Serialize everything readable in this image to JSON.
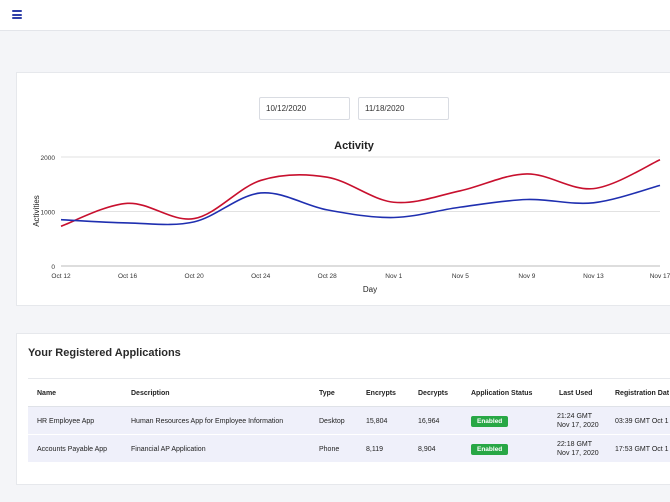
{
  "topbar": {
    "menu_icon": "hamburger-menu-icon"
  },
  "filters": {
    "start_date": "10/12/2020",
    "end_date": "11/18/2020"
  },
  "chart_data": {
    "type": "line",
    "title": "Activity",
    "xlabel": "Day",
    "ylabel": "Activities",
    "x": [
      "Oct 12",
      "Oct 16",
      "Oct 20",
      "Oct 24",
      "Oct 28",
      "Nov 1",
      "Nov 5",
      "Nov 9",
      "Nov 13",
      "Nov 17"
    ],
    "ylim": [
      0,
      2000
    ],
    "yticks": [
      "0",
      "1000",
      "2000"
    ],
    "grid": "horizontal",
    "legend": "none",
    "series": [
      {
        "color": "#c8102e",
        "values": [
          730,
          1150,
          870,
          1570,
          1630,
          1170,
          1380,
          1690,
          1420,
          1950
        ]
      },
      {
        "color": "#1f2fb0",
        "values": [
          850,
          790,
          810,
          1340,
          1030,
          890,
          1080,
          1220,
          1160,
          1480
        ]
      }
    ]
  },
  "apps": {
    "title": "Your Registered Applications",
    "columns": [
      "Name",
      "Description",
      "Type",
      "Encrypts",
      "Decrypts",
      "Application Status",
      "Last Used",
      "Registration Dat"
    ],
    "rows": [
      {
        "name": "HR Employee App",
        "description": "Human Resources App for Employee Information",
        "type": "Desktop",
        "encrypts": "15,804",
        "decrypts": "16,964",
        "status": "Enabled",
        "last_used_time": "21:24 GMT",
        "last_used_date": "Nov 17, 2020",
        "registration": "03:39 GMT Oct 1"
      },
      {
        "name": "Accounts Payable App",
        "description": "Financial AP Application",
        "type": "Phone",
        "encrypts": "8,119",
        "decrypts": "8,904",
        "status": "Enabled",
        "last_used_time": "22:18 GMT",
        "last_used_date": "Nov 17, 2020",
        "registration": "17:53 GMT Oct 1"
      }
    ],
    "status_color": "#28a745"
  }
}
